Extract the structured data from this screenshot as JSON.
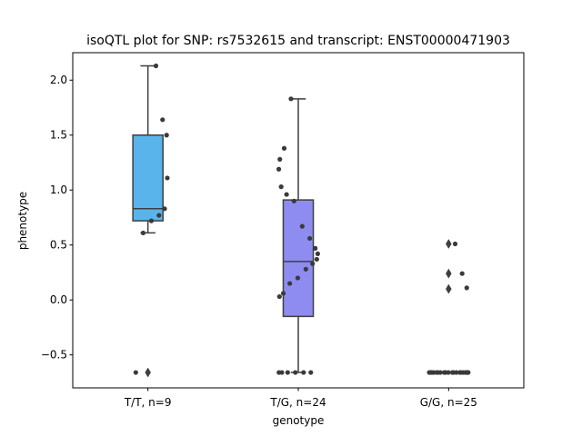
{
  "chart_data": {
    "type": "box",
    "title": "isoQTL plot for SNP: rs7532615 and transcript: ENST00000471903",
    "xlabel": "genotype",
    "ylabel": "phenotype",
    "ylim": [
      -0.8,
      2.25
    ],
    "yticks": [
      -0.5,
      0.0,
      0.5,
      1.0,
      1.5,
      2.0
    ],
    "ytick_labels": [
      "−0.5",
      "0.0",
      "0.5",
      "1.0",
      "1.5",
      "2.0"
    ],
    "grid": false,
    "categories": [
      "T/T, n=9",
      "T/G, n=24",
      "G/G, n=25"
    ],
    "colors": [
      "#5ab4ec",
      "#8e8cf0",
      "#c39bf3"
    ],
    "boxes": [
      {
        "q1": 0.72,
        "median": 0.83,
        "q3": 1.5,
        "whisker_low": 0.61,
        "whisker_high": 2.13,
        "outliers": [
          -0.66
        ]
      },
      {
        "q1": -0.15,
        "median": 0.35,
        "q3": 0.91,
        "whisker_low": -0.66,
        "whisker_high": 1.83,
        "outliers": []
      },
      {
        "q1": -0.66,
        "median": -0.66,
        "q3": -0.66,
        "whisker_low": -0.66,
        "whisker_high": -0.66,
        "outliers": [
          0.51,
          0.24,
          0.1
        ]
      }
    ],
    "points": [
      [
        2.13,
        1.64,
        1.5,
        1.11,
        0.83,
        0.77,
        0.72,
        0.61,
        -0.66
      ],
      [
        1.83,
        1.38,
        1.28,
        1.19,
        1.03,
        0.96,
        0.9,
        0.67,
        0.56,
        0.47,
        0.42,
        0.37,
        0.33,
        0.28,
        0.2,
        0.15,
        0.06,
        0.03,
        -0.66,
        -0.66,
        -0.66,
        -0.66,
        -0.66,
        -0.66
      ],
      [
        0.51,
        0.24,
        0.11,
        -0.66,
        -0.66,
        -0.66,
        -0.66,
        -0.66,
        -0.66,
        -0.66,
        -0.66,
        -0.66,
        -0.66,
        -0.66,
        -0.66,
        -0.66,
        -0.66,
        -0.66,
        -0.66,
        -0.66,
        -0.66,
        -0.66,
        -0.66,
        -0.66,
        -0.66
      ]
    ]
  }
}
